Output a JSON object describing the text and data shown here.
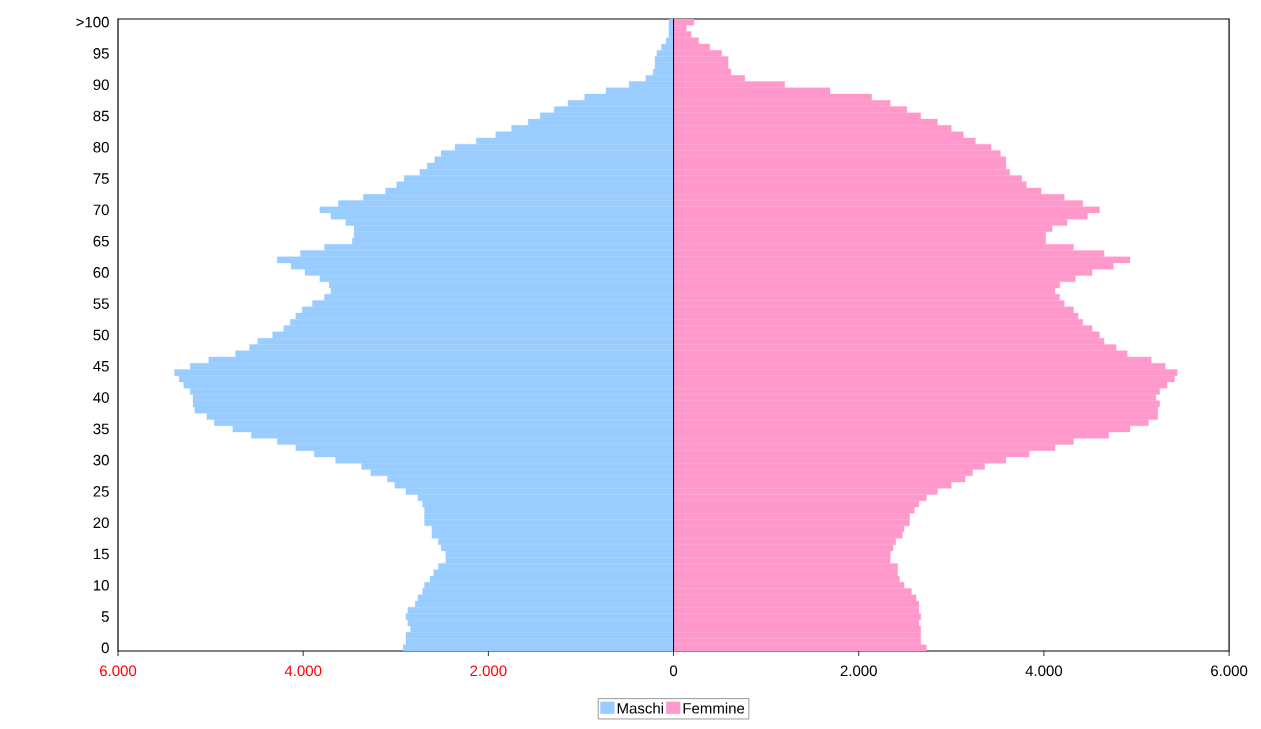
{
  "chart_data": {
    "type": "bar",
    "orientation": "horizontal",
    "categories": [
      ">100",
      null,
      null,
      null,
      null,
      "95",
      null,
      null,
      null,
      null,
      "90",
      null,
      null,
      null,
      null,
      "85",
      null,
      null,
      null,
      null,
      "80",
      null,
      null,
      null,
      null,
      "75",
      null,
      null,
      null,
      null,
      "70",
      null,
      null,
      null,
      null,
      "65",
      null,
      null,
      null,
      null,
      "60",
      null,
      null,
      null,
      null,
      "55",
      null,
      null,
      null,
      null,
      "50",
      null,
      null,
      null,
      null,
      "45",
      null,
      null,
      null,
      null,
      "40",
      null,
      null,
      null,
      null,
      "35",
      null,
      null,
      null,
      null,
      "30",
      null,
      null,
      null,
      null,
      "25",
      null,
      null,
      null,
      null,
      "20",
      null,
      null,
      null,
      null,
      "15",
      null,
      null,
      null,
      null,
      "10",
      null,
      null,
      null,
      null,
      "5",
      null,
      null,
      null,
      null,
      "0"
    ],
    "series": [
      {
        "name": "Maschi",
        "color": "#99ccff",
        "values": [
          -50,
          -50,
          -50,
          -80,
          -130,
          -180,
          -200,
          -200,
          -220,
          -300,
          -480,
          -730,
          -960,
          -1140,
          -1290,
          -1440,
          -1570,
          -1750,
          -1920,
          -2130,
          -2360,
          -2510,
          -2580,
          -2660,
          -2740,
          -2910,
          -2990,
          -3110,
          -3350,
          -3620,
          -3820,
          -3700,
          -3540,
          -3450,
          -3450,
          -3470,
          -3770,
          -4030,
          -4280,
          -4130,
          -3980,
          -3820,
          -3720,
          -3700,
          -3770,
          -3900,
          -4010,
          -4080,
          -4140,
          -4210,
          -4330,
          -4490,
          -4580,
          -4730,
          -5020,
          -5220,
          -5390,
          -5340,
          -5290,
          -5220,
          -5190,
          -5190,
          -5170,
          -5040,
          -4960,
          -4760,
          -4560,
          -4280,
          -4080,
          -3880,
          -3650,
          -3370,
          -3270,
          -3090,
          -3010,
          -2890,
          -2760,
          -2710,
          -2690,
          -2690,
          -2690,
          -2610,
          -2610,
          -2540,
          -2510,
          -2460,
          -2460,
          -2540,
          -2590,
          -2630,
          -2690,
          -2710,
          -2760,
          -2790,
          -2870,
          -2890,
          -2870,
          -2840,
          -2890,
          -2890,
          -2920
        ]
      },
      {
        "name": "Femmine",
        "color": "#ff99cc",
        "values": [
          220,
          140,
          190,
          270,
          390,
          520,
          590,
          590,
          620,
          770,
          1200,
          1690,
          2140,
          2340,
          2520,
          2670,
          2850,
          3000,
          3130,
          3260,
          3430,
          3530,
          3590,
          3590,
          3630,
          3760,
          3810,
          3970,
          4220,
          4420,
          4600,
          4470,
          4250,
          4090,
          4020,
          4020,
          4320,
          4650,
          4930,
          4750,
          4520,
          4340,
          4170,
          4120,
          4170,
          4220,
          4320,
          4370,
          4420,
          4520,
          4600,
          4650,
          4780,
          4900,
          5160,
          5310,
          5440,
          5410,
          5330,
          5250,
          5210,
          5250,
          5230,
          5230,
          5130,
          4930,
          4700,
          4320,
          4120,
          3840,
          3590,
          3360,
          3230,
          3150,
          3000,
          2850,
          2730,
          2650,
          2600,
          2550,
          2550,
          2490,
          2470,
          2400,
          2370,
          2340,
          2340,
          2420,
          2420,
          2440,
          2490,
          2570,
          2620,
          2650,
          2650,
          2670,
          2650,
          2670,
          2670,
          2670,
          2730
        ]
      }
    ],
    "xlim": [
      -6000,
      6000
    ],
    "xticks": [
      {
        "value": -6000,
        "label": "6.000"
      },
      {
        "value": -4000,
        "label": "4.000"
      },
      {
        "value": -2000,
        "label": "2.000"
      },
      0,
      {
        "value": 2000,
        "label": "2.000"
      },
      {
        "value": 4000,
        "label": "4.000"
      },
      {
        "value": 6000,
        "label": "6.000"
      }
    ],
    "ref_lines": [
      {
        "axis": "x",
        "value": 0,
        "color": "#000000"
      }
    ],
    "legend": "bottom",
    "stacked": true
  }
}
